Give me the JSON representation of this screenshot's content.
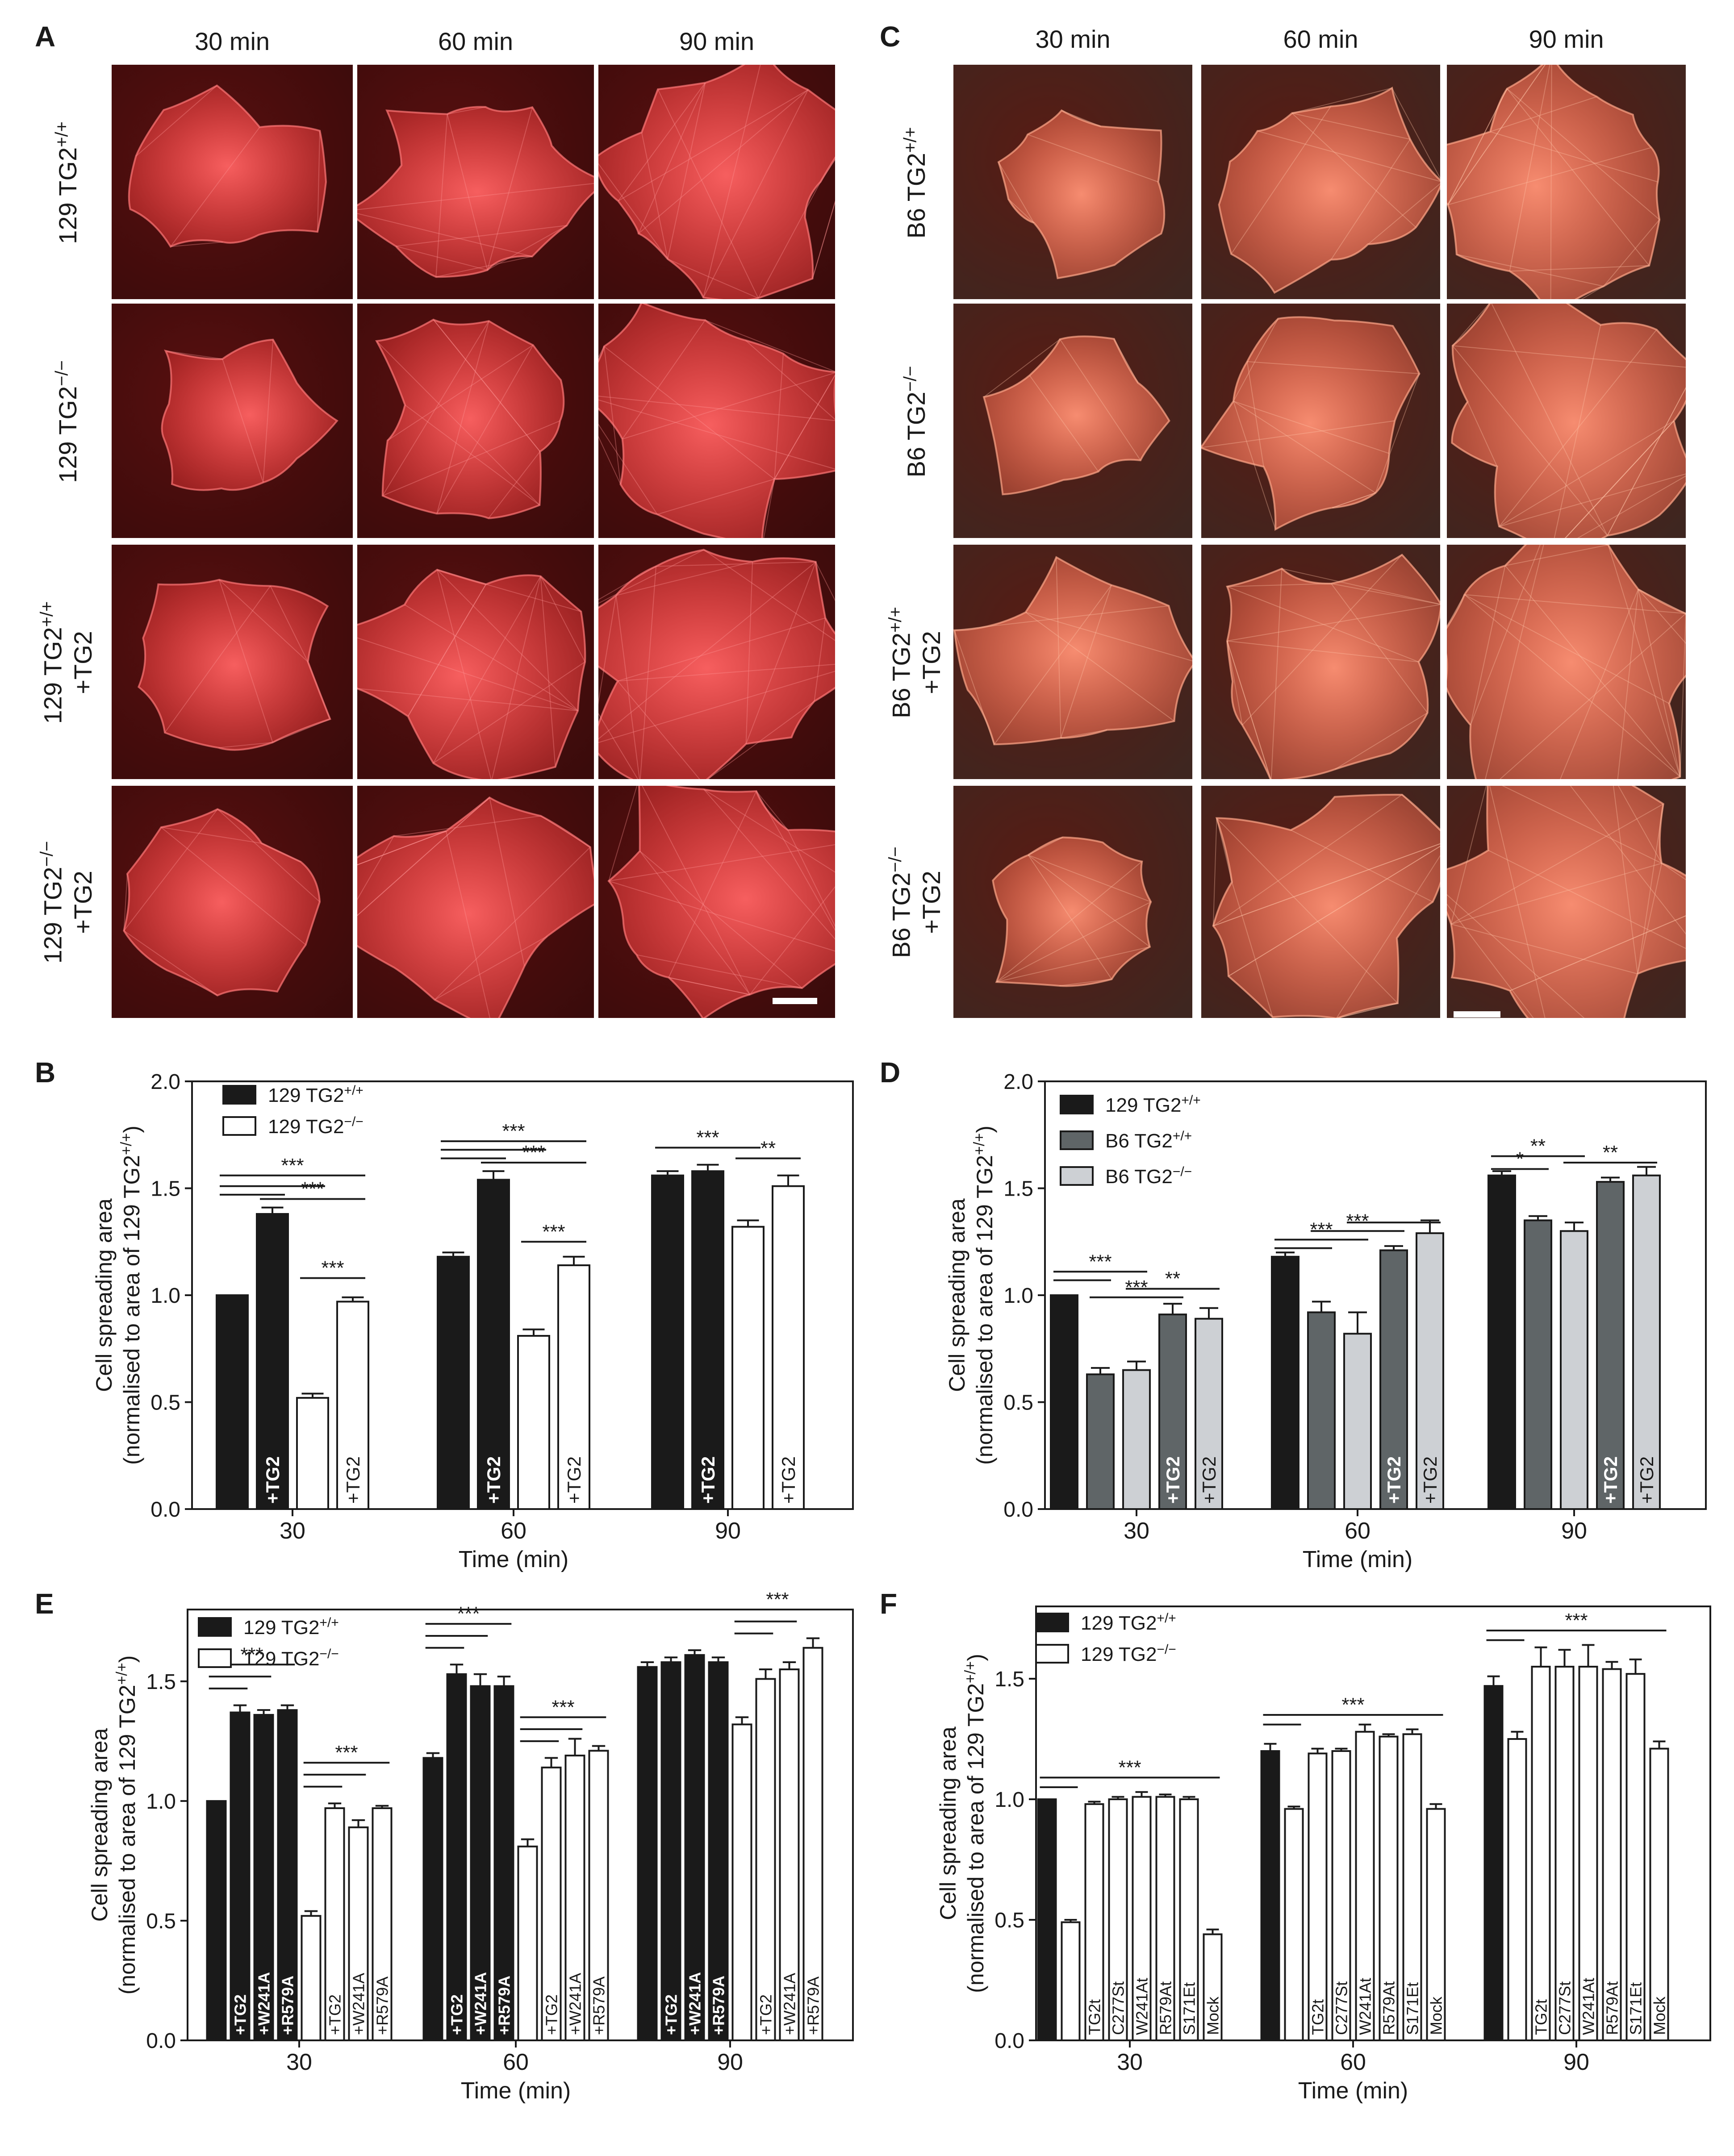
{
  "micrographs": {
    "A": {
      "letter": "A",
      "columns": [
        "30 min",
        "60 min",
        "90 min"
      ],
      "rows": [
        {
          "label_main": "129 TG2",
          "label_sup": "+/+",
          "label_line2": ""
        },
        {
          "label_main": "129 TG2",
          "label_sup": "−/−",
          "label_line2": ""
        },
        {
          "label_main": "129 TG2",
          "label_sup": "+/+",
          "label_line2": "+TG2"
        },
        {
          "label_main": "129 TG2",
          "label_sup": "−/−",
          "label_line2": "+TG2"
        }
      ],
      "tint": "#ff3b3b",
      "background": "#3a0b0b"
    },
    "C": {
      "letter": "C",
      "columns": [
        "30 min",
        "60 min",
        "90 min"
      ],
      "rows": [
        {
          "label_main": "B6 TG2",
          "label_sup": "+/+",
          "label_line2": ""
        },
        {
          "label_main": "B6 TG2",
          "label_sup": "−/−",
          "label_line2": ""
        },
        {
          "label_main": "B6 TG2",
          "label_sup": "+/+",
          "label_line2": "+TG2"
        },
        {
          "label_main": "B6 TG2",
          "label_sup": "−/−",
          "label_line2": "+TG2"
        }
      ],
      "tint": "#ff6a4d",
      "background": "#3e2620"
    }
  },
  "chart_data": [
    {
      "panel": "B",
      "type": "bar",
      "ylabel_line1": "Cell spreading area",
      "ylabel_line2_main": "(normalised to area of 129 TG2",
      "ylabel_line2_sup": "+/+",
      "ylabel_line2_end": ")",
      "xlabel": "Time (min)",
      "ylim": [
        0,
        2.0
      ],
      "yticks": [
        "0.0",
        "0.5",
        "1.0",
        "1.5",
        "2.0"
      ],
      "groups": [
        "30",
        "60",
        "90"
      ],
      "legend": [
        {
          "main": "129 TG2",
          "sup": "+/+",
          "fill": "#1a1a1a"
        },
        {
          "main": "129 TG2",
          "sup": "−/−",
          "fill": "#ffffff"
        }
      ],
      "bars": [
        {
          "group": 0,
          "value": 1.0,
          "err": 0.0,
          "fill": "#1a1a1a",
          "label": ""
        },
        {
          "group": 0,
          "value": 1.38,
          "err": 0.03,
          "fill": "#1a1a1a",
          "label": "+TG2"
        },
        {
          "group": 0,
          "value": 0.52,
          "err": 0.02,
          "fill": "#ffffff",
          "label": ""
        },
        {
          "group": 0,
          "value": 0.97,
          "err": 0.02,
          "fill": "#ffffff",
          "label": "+TG2"
        },
        {
          "group": 1,
          "value": 1.18,
          "err": 0.02,
          "fill": "#1a1a1a",
          "label": ""
        },
        {
          "group": 1,
          "value": 1.54,
          "err": 0.04,
          "fill": "#1a1a1a",
          "label": "+TG2"
        },
        {
          "group": 1,
          "value": 0.81,
          "err": 0.03,
          "fill": "#ffffff",
          "label": ""
        },
        {
          "group": 1,
          "value": 1.14,
          "err": 0.04,
          "fill": "#ffffff",
          "label": "+TG2"
        },
        {
          "group": 2,
          "value": 1.56,
          "err": 0.02,
          "fill": "#1a1a1a",
          "label": ""
        },
        {
          "group": 2,
          "value": 1.58,
          "err": 0.03,
          "fill": "#1a1a1a",
          "label": "+TG2"
        },
        {
          "group": 2,
          "value": 1.32,
          "err": 0.03,
          "fill": "#ffffff",
          "label": ""
        },
        {
          "group": 2,
          "value": 1.51,
          "err": 0.05,
          "fill": "#ffffff",
          "label": "+TG2"
        }
      ],
      "sig": [
        {
          "from": 0,
          "to": 1,
          "y": 1.47,
          "text": ""
        },
        {
          "from": 0,
          "to": 2,
          "y": 1.51,
          "text": ""
        },
        {
          "from": 0,
          "to": 3,
          "y": 1.56,
          "text": "***"
        },
        {
          "from": 1,
          "to": 3,
          "y": 1.45,
          "text": "***"
        },
        {
          "from": 2,
          "to": 3,
          "y": 1.08,
          "text": "***"
        },
        {
          "from": 4,
          "to": 5,
          "y": 1.64,
          "text": ""
        },
        {
          "from": 4,
          "to": 6,
          "y": 1.68,
          "text": ""
        },
        {
          "from": 4,
          "to": 7,
          "y": 1.72,
          "text": "***"
        },
        {
          "from": 5,
          "to": 7,
          "y": 1.62,
          "text": "***"
        },
        {
          "from": 6,
          "to": 7,
          "y": 1.25,
          "text": "***"
        },
        {
          "from": 8,
          "to": 10,
          "y": 1.69,
          "text": "***"
        },
        {
          "from": 10,
          "to": 11,
          "y": 1.64,
          "text": "**"
        }
      ]
    },
    {
      "panel": "D",
      "type": "bar",
      "ylabel_line1": "Cell spreading area",
      "ylabel_line2_main": "(normalised to area of 129 TG2",
      "ylabel_line2_sup": "+/+",
      "ylabel_line2_end": ")",
      "xlabel": "Time (min)",
      "ylim": [
        0,
        2.0
      ],
      "yticks": [
        "0.0",
        "0.5",
        "1.0",
        "1.5",
        "2.0"
      ],
      "groups": [
        "30",
        "60",
        "90"
      ],
      "legend": [
        {
          "main": "129 TG2",
          "sup": "+/+",
          "fill": "#1a1a1a"
        },
        {
          "main": "B6 TG2",
          "sup": "+/+",
          "fill": "#5f6567"
        },
        {
          "main": "B6 TG2",
          "sup": "−/−",
          "fill": "#cdd0d4"
        }
      ],
      "bars": [
        {
          "group": 0,
          "value": 1.0,
          "err": 0.0,
          "fill": "#1a1a1a",
          "label": ""
        },
        {
          "group": 0,
          "value": 0.63,
          "err": 0.03,
          "fill": "#5f6567",
          "label": ""
        },
        {
          "group": 0,
          "value": 0.65,
          "err": 0.04,
          "fill": "#cdd0d4",
          "label": ""
        },
        {
          "group": 0,
          "value": 0.91,
          "err": 0.05,
          "fill": "#5f6567",
          "label": "+TG2"
        },
        {
          "group": 0,
          "value": 0.89,
          "err": 0.05,
          "fill": "#cdd0d4",
          "label": "+TG2"
        },
        {
          "group": 1,
          "value": 1.18,
          "err": 0.02,
          "fill": "#1a1a1a",
          "label": ""
        },
        {
          "group": 1,
          "value": 0.92,
          "err": 0.05,
          "fill": "#5f6567",
          "label": ""
        },
        {
          "group": 1,
          "value": 0.82,
          "err": 0.1,
          "fill": "#cdd0d4",
          "label": ""
        },
        {
          "group": 1,
          "value": 1.21,
          "err": 0.02,
          "fill": "#5f6567",
          "label": "+TG2"
        },
        {
          "group": 1,
          "value": 1.29,
          "err": 0.06,
          "fill": "#cdd0d4",
          "label": "+TG2"
        },
        {
          "group": 2,
          "value": 1.56,
          "err": 0.02,
          "fill": "#1a1a1a",
          "label": ""
        },
        {
          "group": 2,
          "value": 1.35,
          "err": 0.02,
          "fill": "#5f6567",
          "label": ""
        },
        {
          "group": 2,
          "value": 1.3,
          "err": 0.04,
          "fill": "#cdd0d4",
          "label": ""
        },
        {
          "group": 2,
          "value": 1.53,
          "err": 0.02,
          "fill": "#5f6567",
          "label": "+TG2"
        },
        {
          "group": 2,
          "value": 1.56,
          "err": 0.04,
          "fill": "#cdd0d4",
          "label": "+TG2"
        }
      ],
      "sig": [
        {
          "from": 0,
          "to": 1,
          "y": 1.07,
          "text": ""
        },
        {
          "from": 0,
          "to": 2,
          "y": 1.11,
          "text": "***"
        },
        {
          "from": 1,
          "to": 3,
          "y": 0.99,
          "text": "***"
        },
        {
          "from": 2,
          "to": 4,
          "y": 1.03,
          "text": "**"
        },
        {
          "from": 5,
          "to": 6,
          "y": 1.22,
          "text": ""
        },
        {
          "from": 5,
          "to": 7,
          "y": 1.26,
          "text": "***"
        },
        {
          "from": 6,
          "to": 8,
          "y": 1.3,
          "text": "***"
        },
        {
          "from": 7,
          "to": 9,
          "y": 1.34,
          "text": ""
        },
        {
          "from": 10,
          "to": 11,
          "y": 1.59,
          "text": "*"
        },
        {
          "from": 10,
          "to": 12,
          "y": 1.65,
          "text": "**"
        },
        {
          "from": 12,
          "to": 14,
          "y": 1.62,
          "text": "**"
        }
      ]
    },
    {
      "panel": "E",
      "type": "bar",
      "ylabel_line1": "Cell spreading area",
      "ylabel_line2_main": "(normalised to area of 129 TG2",
      "ylabel_line2_sup": "+/+",
      "ylabel_line2_end": ")",
      "xlabel": "Time (min)",
      "ylim": [
        0,
        1.8
      ],
      "yticks": [
        "0.0",
        "0.5",
        "1.0",
        "1.5"
      ],
      "groups": [
        "30",
        "60",
        "90"
      ],
      "legend": [
        {
          "main": "129 TG2",
          "sup": "+/+",
          "fill": "#1a1a1a"
        },
        {
          "main": "129 TG2",
          "sup": "−/−",
          "fill": "#ffffff"
        }
      ],
      "bars": [
        {
          "group": 0,
          "value": 1.0,
          "err": 0.0,
          "fill": "#1a1a1a",
          "label": ""
        },
        {
          "group": 0,
          "value": 1.37,
          "err": 0.03,
          "fill": "#1a1a1a",
          "label": "+TG2"
        },
        {
          "group": 0,
          "value": 1.36,
          "err": 0.02,
          "fill": "#1a1a1a",
          "label": "+W241A"
        },
        {
          "group": 0,
          "value": 1.38,
          "err": 0.02,
          "fill": "#1a1a1a",
          "label": "+R579A"
        },
        {
          "group": 0,
          "value": 0.52,
          "err": 0.02,
          "fill": "#ffffff",
          "label": ""
        },
        {
          "group": 0,
          "value": 0.97,
          "err": 0.02,
          "fill": "#ffffff",
          "label": "+TG2"
        },
        {
          "group": 0,
          "value": 0.89,
          "err": 0.03,
          "fill": "#ffffff",
          "label": "+W241A"
        },
        {
          "group": 0,
          "value": 0.97,
          "err": 0.01,
          "fill": "#ffffff",
          "label": "+R579A"
        },
        {
          "group": 1,
          "value": 1.18,
          "err": 0.02,
          "fill": "#1a1a1a",
          "label": ""
        },
        {
          "group": 1,
          "value": 1.53,
          "err": 0.04,
          "fill": "#1a1a1a",
          "label": "+TG2"
        },
        {
          "group": 1,
          "value": 1.48,
          "err": 0.05,
          "fill": "#1a1a1a",
          "label": "+W241A"
        },
        {
          "group": 1,
          "value": 1.48,
          "err": 0.04,
          "fill": "#1a1a1a",
          "label": "+R579A"
        },
        {
          "group": 1,
          "value": 0.81,
          "err": 0.03,
          "fill": "#ffffff",
          "label": ""
        },
        {
          "group": 1,
          "value": 1.14,
          "err": 0.04,
          "fill": "#ffffff",
          "label": "+TG2"
        },
        {
          "group": 1,
          "value": 1.19,
          "err": 0.07,
          "fill": "#ffffff",
          "label": "+W241A"
        },
        {
          "group": 1,
          "value": 1.21,
          "err": 0.02,
          "fill": "#ffffff",
          "label": "+R579A"
        },
        {
          "group": 2,
          "value": 1.56,
          "err": 0.02,
          "fill": "#1a1a1a",
          "label": ""
        },
        {
          "group": 2,
          "value": 1.58,
          "err": 0.02,
          "fill": "#1a1a1a",
          "label": "+TG2"
        },
        {
          "group": 2,
          "value": 1.61,
          "err": 0.02,
          "fill": "#1a1a1a",
          "label": "+W241A"
        },
        {
          "group": 2,
          "value": 1.58,
          "err": 0.02,
          "fill": "#1a1a1a",
          "label": "+R579A"
        },
        {
          "group": 2,
          "value": 1.32,
          "err": 0.03,
          "fill": "#ffffff",
          "label": ""
        },
        {
          "group": 2,
          "value": 1.51,
          "err": 0.04,
          "fill": "#ffffff",
          "label": "+TG2"
        },
        {
          "group": 2,
          "value": 1.55,
          "err": 0.03,
          "fill": "#ffffff",
          "label": "+W241A"
        },
        {
          "group": 2,
          "value": 1.64,
          "err": 0.04,
          "fill": "#ffffff",
          "label": "+R579A"
        }
      ],
      "sig": [
        {
          "from": 0,
          "to": 1,
          "y": 1.47,
          "text": ""
        },
        {
          "from": 0,
          "to": 2,
          "y": 1.52,
          "text": ""
        },
        {
          "from": 0,
          "to": 3,
          "y": 1.57,
          "text": "***"
        },
        {
          "from": 4,
          "to": 5,
          "y": 1.06,
          "text": ""
        },
        {
          "from": 4,
          "to": 6,
          "y": 1.11,
          "text": ""
        },
        {
          "from": 4,
          "to": 7,
          "y": 1.16,
          "text": "***"
        },
        {
          "from": 8,
          "to": 9,
          "y": 1.64,
          "text": ""
        },
        {
          "from": 8,
          "to": 10,
          "y": 1.69,
          "text": ""
        },
        {
          "from": 8,
          "to": 11,
          "y": 1.74,
          "text": "***"
        },
        {
          "from": 12,
          "to": 13,
          "y": 1.25,
          "text": ""
        },
        {
          "from": 12,
          "to": 14,
          "y": 1.3,
          "text": ""
        },
        {
          "from": 12,
          "to": 15,
          "y": 1.35,
          "text": "***"
        },
        {
          "from": 20,
          "to": 21,
          "y": 1.7,
          "text": ""
        },
        {
          "from": 20,
          "to": 22,
          "y": 1.75,
          "text": ""
        },
        {
          "from": 20,
          "to": 23,
          "y": 1.8,
          "text": "***"
        }
      ]
    },
    {
      "panel": "F",
      "type": "bar",
      "ylabel_line1": "Cell spreading area",
      "ylabel_line2_main": "(normalised to area of 129 TG2",
      "ylabel_line2_sup": "+/+",
      "ylabel_line2_end": ")",
      "xlabel": "Time (min)",
      "ylim": [
        0,
        1.8
      ],
      "yticks": [
        "0.0",
        "0.5",
        "1.0",
        "1.5"
      ],
      "groups": [
        "30",
        "60",
        "90"
      ],
      "legend": [
        {
          "main": "129 TG2",
          "sup": "+/+",
          "fill": "#1a1a1a"
        },
        {
          "main": "129 TG2",
          "sup": "−/−",
          "fill": "#ffffff"
        }
      ],
      "bars": [
        {
          "group": 0,
          "value": 1.0,
          "err": 0.0,
          "fill": "#1a1a1a",
          "label": ""
        },
        {
          "group": 0,
          "value": 0.49,
          "err": 0.01,
          "fill": "#ffffff",
          "label": ""
        },
        {
          "group": 0,
          "value": 0.98,
          "err": 0.01,
          "fill": "#ffffff",
          "label": "TG2t"
        },
        {
          "group": 0,
          "value": 1.0,
          "err": 0.01,
          "fill": "#ffffff",
          "label": "C277St"
        },
        {
          "group": 0,
          "value": 1.01,
          "err": 0.02,
          "fill": "#ffffff",
          "label": "W241At"
        },
        {
          "group": 0,
          "value": 1.01,
          "err": 0.01,
          "fill": "#ffffff",
          "label": "R579At"
        },
        {
          "group": 0,
          "value": 1.0,
          "err": 0.01,
          "fill": "#ffffff",
          "label": "S171Et"
        },
        {
          "group": 0,
          "value": 0.44,
          "err": 0.02,
          "fill": "#ffffff",
          "label": "Mock"
        },
        {
          "group": 1,
          "value": 1.2,
          "err": 0.03,
          "fill": "#1a1a1a",
          "label": ""
        },
        {
          "group": 1,
          "value": 0.96,
          "err": 0.01,
          "fill": "#ffffff",
          "label": ""
        },
        {
          "group": 1,
          "value": 1.19,
          "err": 0.02,
          "fill": "#ffffff",
          "label": "TG2t"
        },
        {
          "group": 1,
          "value": 1.2,
          "err": 0.01,
          "fill": "#ffffff",
          "label": "C277St"
        },
        {
          "group": 1,
          "value": 1.28,
          "err": 0.03,
          "fill": "#ffffff",
          "label": "W241At"
        },
        {
          "group": 1,
          "value": 1.26,
          "err": 0.01,
          "fill": "#ffffff",
          "label": "R579At"
        },
        {
          "group": 1,
          "value": 1.27,
          "err": 0.02,
          "fill": "#ffffff",
          "label": "S171Et"
        },
        {
          "group": 1,
          "value": 0.96,
          "err": 0.02,
          "fill": "#ffffff",
          "label": "Mock"
        },
        {
          "group": 2,
          "value": 1.47,
          "err": 0.04,
          "fill": "#1a1a1a",
          "label": ""
        },
        {
          "group": 2,
          "value": 1.25,
          "err": 0.03,
          "fill": "#ffffff",
          "label": ""
        },
        {
          "group": 2,
          "value": 1.55,
          "err": 0.08,
          "fill": "#ffffff",
          "label": "TG2t"
        },
        {
          "group": 2,
          "value": 1.55,
          "err": 0.07,
          "fill": "#ffffff",
          "label": "C277St"
        },
        {
          "group": 2,
          "value": 1.55,
          "err": 0.09,
          "fill": "#ffffff",
          "label": "W241At"
        },
        {
          "group": 2,
          "value": 1.54,
          "err": 0.03,
          "fill": "#ffffff",
          "label": "R579At"
        },
        {
          "group": 2,
          "value": 1.52,
          "err": 0.06,
          "fill": "#ffffff",
          "label": "S171Et"
        },
        {
          "group": 2,
          "value": 1.21,
          "err": 0.03,
          "fill": "#ffffff",
          "label": "Mock"
        }
      ],
      "sig": [
        {
          "from": 0,
          "to": 1,
          "y": 1.05,
          "text": ""
        },
        {
          "from": 0,
          "to": 7,
          "y": 1.09,
          "text": "***"
        },
        {
          "from": 8,
          "to": 9,
          "y": 1.31,
          "text": ""
        },
        {
          "from": 8,
          "to": 15,
          "y": 1.35,
          "text": "***"
        },
        {
          "from": 16,
          "to": 17,
          "y": 1.66,
          "text": ""
        },
        {
          "from": 16,
          "to": 23,
          "y": 1.7,
          "text": "***"
        }
      ]
    }
  ]
}
